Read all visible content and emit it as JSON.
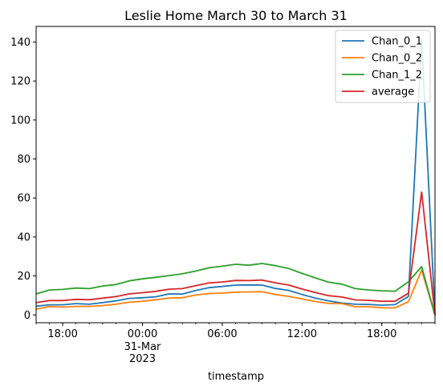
{
  "chart_data": {
    "type": "line",
    "title": "Leslie Home March 30 to March 31",
    "xlabel": "timestamp",
    "ylabel": "",
    "x_unit": "hour",
    "x": [
      "2023-03-30T16:00",
      "2023-03-30T17:00",
      "2023-03-30T18:00",
      "2023-03-30T19:00",
      "2023-03-30T20:00",
      "2023-03-30T21:00",
      "2023-03-30T22:00",
      "2023-03-30T23:00",
      "2023-03-31T00:00",
      "2023-03-31T01:00",
      "2023-03-31T02:00",
      "2023-03-31T03:00",
      "2023-03-31T04:00",
      "2023-03-31T05:00",
      "2023-03-31T06:00",
      "2023-03-31T07:00",
      "2023-03-31T08:00",
      "2023-03-31T09:00",
      "2023-03-31T10:00",
      "2023-03-31T11:00",
      "2023-03-31T12:00",
      "2023-03-31T13:00",
      "2023-03-31T14:00",
      "2023-03-31T15:00",
      "2023-03-31T16:00",
      "2023-03-31T17:00",
      "2023-03-31T18:00",
      "2023-03-31T19:00",
      "2023-03-31T20:00",
      "2023-03-31T21:00",
      "2023-03-31T22:00"
    ],
    "xlim": [
      "2023-03-30T16:00",
      "2023-03-31T22:00"
    ],
    "ylim": [
      -4,
      148
    ],
    "xticks": [
      {
        "x": "2023-03-30T18:00",
        "label": "18:00"
      },
      {
        "x": "2023-03-31T00:00",
        "label": "00:00",
        "sub": [
          "31-Mar",
          "2023"
        ]
      },
      {
        "x": "2023-03-31T06:00",
        "label": "06:00"
      },
      {
        "x": "2023-03-31T12:00",
        "label": "12:00"
      },
      {
        "x": "2023-03-31T18:00",
        "label": "18:00"
      }
    ],
    "yticks": [
      0,
      20,
      40,
      60,
      80,
      100,
      120,
      140
    ],
    "legend_position": "top-right",
    "grid": false,
    "series": [
      {
        "name": "Chan_0_1",
        "color": "#1f77b4",
        "values": [
          4.5,
          5.2,
          5.2,
          5.8,
          5.5,
          6.3,
          7.2,
          8.5,
          8.8,
          9.3,
          10.8,
          10.7,
          12.5,
          14.0,
          14.6,
          15.3,
          15.4,
          15.3,
          13.6,
          12.6,
          10.5,
          8.6,
          7.2,
          6.1,
          5.5,
          5.4,
          5.0,
          5.3,
          9.5,
          141.0,
          0
        ]
      },
      {
        "name": "Chan_0_2",
        "color": "#ff7f0e",
        "values": [
          3.0,
          4.3,
          4.0,
          4.4,
          4.4,
          4.8,
          5.5,
          6.5,
          7.0,
          7.8,
          8.7,
          8.8,
          10.2,
          11.0,
          11.2,
          11.7,
          11.8,
          11.9,
          10.5,
          9.5,
          8.2,
          6.9,
          5.9,
          5.8,
          4.2,
          4.2,
          3.7,
          3.6,
          6.8,
          23.0,
          0
        ]
      },
      {
        "name": "Chan_1_2",
        "color": "#2ca02c",
        "values": [
          10.8,
          12.8,
          13.1,
          13.8,
          13.5,
          14.8,
          15.6,
          17.5,
          18.5,
          19.3,
          20.2,
          21.1,
          22.5,
          24.2,
          25.0,
          26.0,
          25.5,
          26.4,
          25.3,
          23.8,
          21.3,
          19.0,
          16.8,
          15.8,
          13.5,
          12.8,
          12.4,
          12.2,
          17.0,
          24.8,
          0
        ]
      },
      {
        "name": "average",
        "color": "#d62728",
        "values": [
          6.3,
          7.4,
          7.4,
          8.0,
          7.8,
          8.6,
          9.4,
          10.8,
          11.4,
          12.1,
          13.2,
          13.5,
          15.0,
          16.4,
          16.9,
          17.7,
          17.6,
          17.9,
          16.5,
          15.3,
          13.3,
          11.5,
          9.9,
          9.2,
          7.7,
          7.5,
          7.0,
          7.0,
          11.1,
          63.0,
          0
        ]
      }
    ]
  }
}
